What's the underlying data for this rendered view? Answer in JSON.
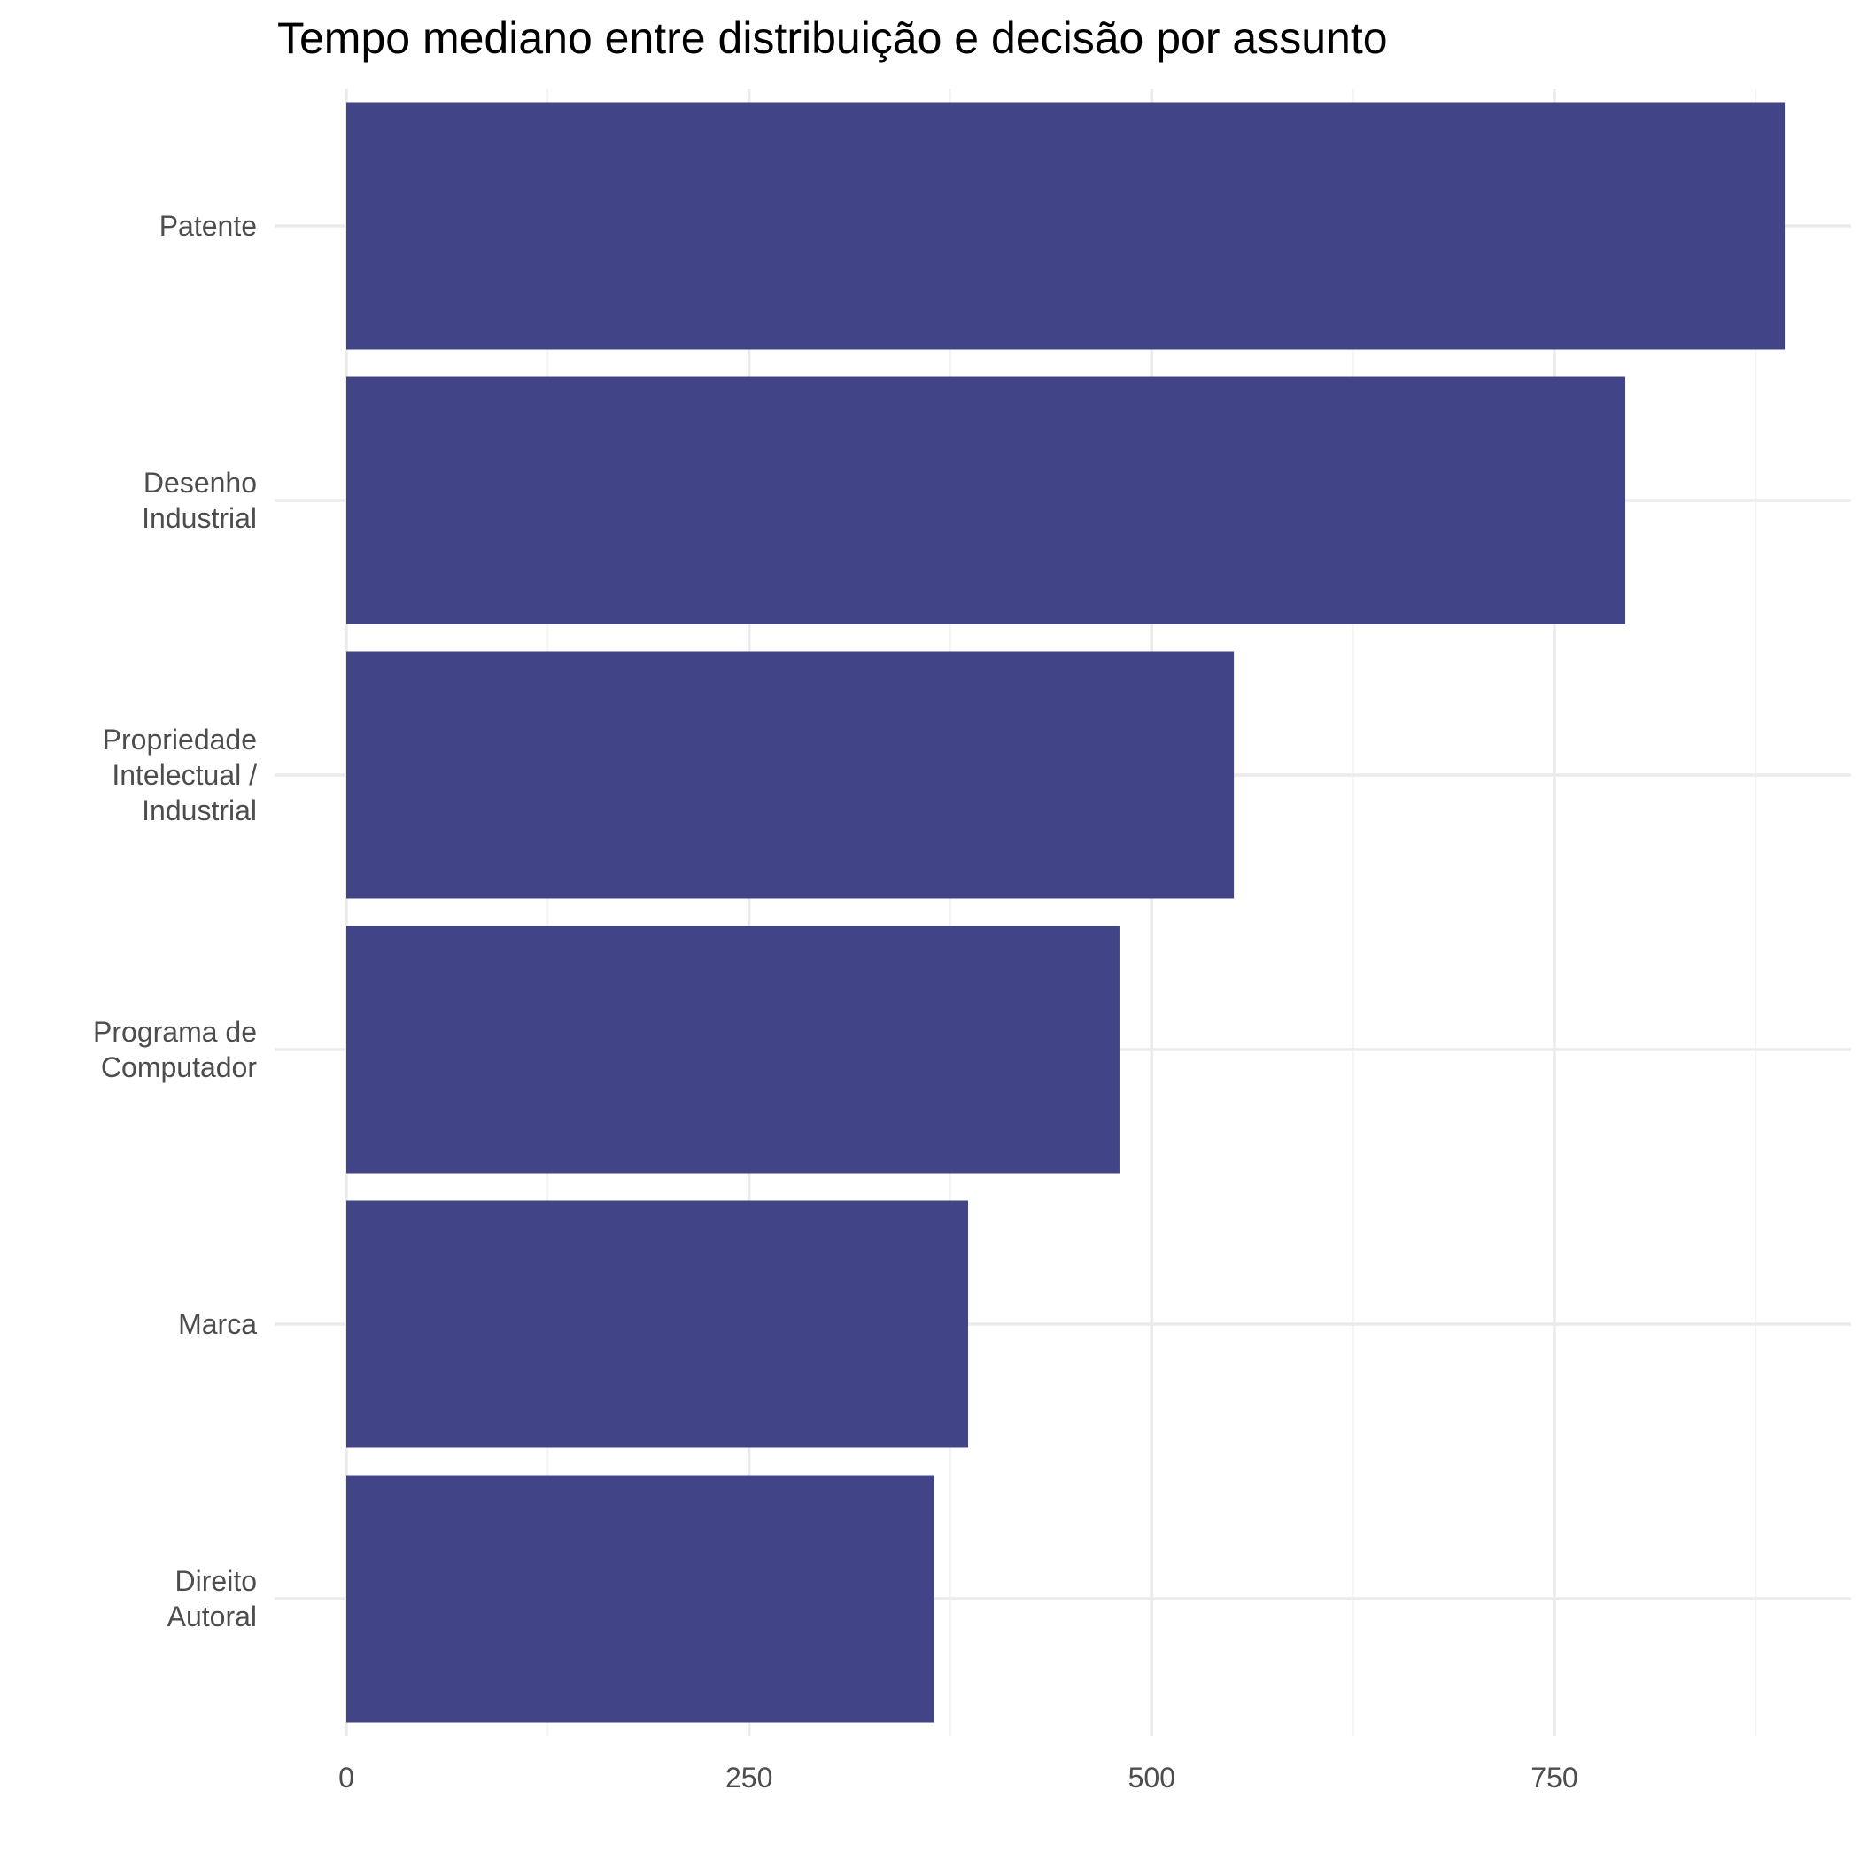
{
  "chart_data": {
    "type": "bar",
    "orientation": "horizontal",
    "title": "Tempo mediano entre distribuição e decisão por assunto",
    "xlabel": "",
    "ylabel": "",
    "categories": [
      [
        "Patente"
      ],
      [
        "Desenho",
        "Industrial"
      ],
      [
        "Propriedade",
        "Intelectual /",
        "Industrial"
      ],
      [
        "Programa de",
        "Computador"
      ],
      [
        "Marca"
      ],
      [
        "Direito",
        "Autoral"
      ]
    ],
    "values": [
      893,
      794,
      551,
      480,
      386,
      365
    ],
    "xlim": [
      0,
      900
    ],
    "xticks": [
      0,
      250,
      500,
      750
    ],
    "xtick_labels": [
      "0",
      "250",
      "500",
      "750"
    ],
    "grid": true,
    "legend": "none",
    "colors": {
      "bar": "#414487",
      "grid_major": "#ebebeb",
      "grid_minor": "#f4f4f4",
      "tick_text": "#4d4d4d",
      "title_text": "#000000"
    }
  }
}
